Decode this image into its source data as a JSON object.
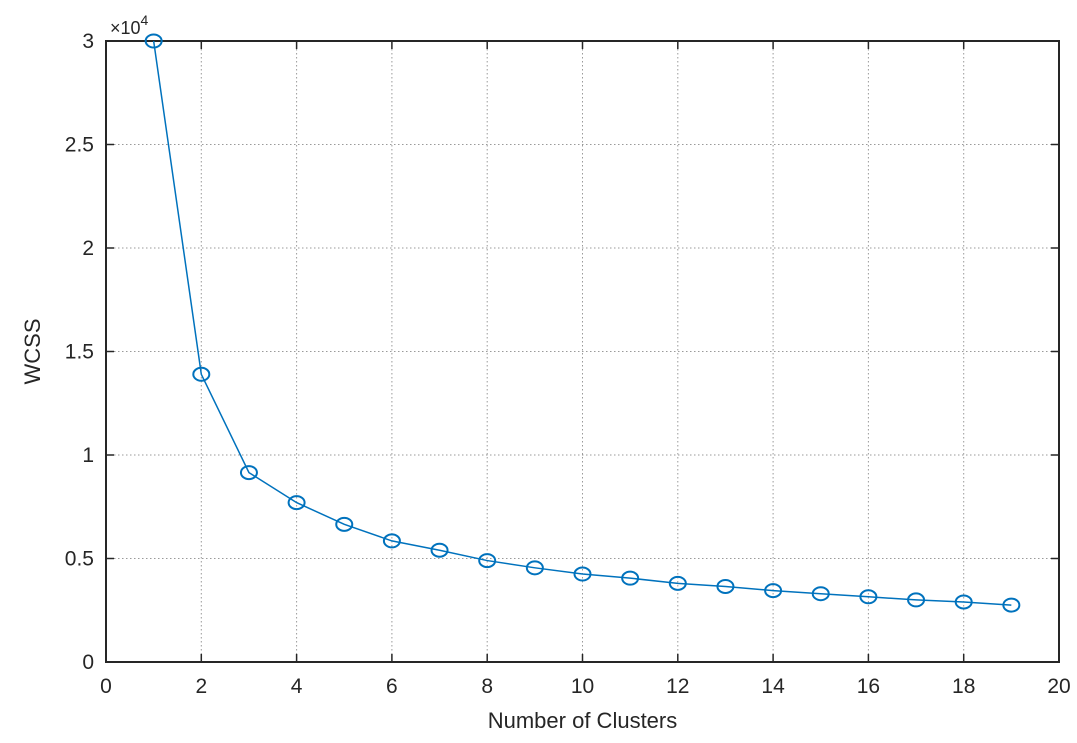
{
  "chart_data": {
    "type": "line",
    "title": "",
    "xlabel": "Number of Clusters",
    "ylabel": "WCSS",
    "xlim": [
      0,
      20
    ],
    "ylim": [
      0,
      30000
    ],
    "x_ticks": [
      0,
      2,
      4,
      6,
      8,
      10,
      12,
      14,
      16,
      18,
      20
    ],
    "x_tick_labels": [
      "0",
      "2",
      "4",
      "6",
      "8",
      "10",
      "12",
      "14",
      "16",
      "18",
      "20"
    ],
    "y_ticks": [
      0,
      5000,
      10000,
      15000,
      20000,
      25000,
      30000
    ],
    "y_tick_labels": [
      "0",
      "0.5",
      "1",
      "1.5",
      "2",
      "2.5",
      "3"
    ],
    "y_exponent_label": {
      "base": "×10",
      "power": "4"
    },
    "grid": true,
    "marker": "circle",
    "series": [
      {
        "color": "#0072BD",
        "x": [
          1,
          2,
          3,
          4,
          5,
          6,
          7,
          8,
          9,
          10,
          11,
          12,
          13,
          14,
          15,
          16,
          17,
          18,
          19
        ],
        "values": [
          30000,
          13900,
          9150,
          7700,
          6650,
          5850,
          5400,
          4900,
          4550,
          4250,
          4050,
          3800,
          3650,
          3450,
          3300,
          3150,
          3000,
          2900,
          2750
        ]
      }
    ]
  }
}
